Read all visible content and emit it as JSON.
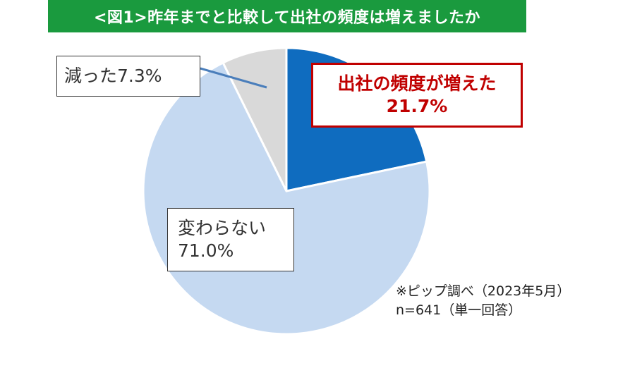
{
  "title": "<図1>昨年までと比較して出社の頻度は増えましたか",
  "chart_data": {
    "type": "pie",
    "slices": [
      {
        "label": "出社の頻度が増えた",
        "value": 21.7,
        "value_label": "21.7%",
        "color": "#0f6cbf"
      },
      {
        "label": "変わらない",
        "value": 71.0,
        "value_label": "71.0%",
        "color": "#c5d9f1"
      },
      {
        "label": "減った",
        "value": 7.3,
        "value_label": "7.3%",
        "color": "#d9d9d9"
      }
    ]
  },
  "labels": {
    "decreased": "減った7.3%",
    "unchanged_name": "変わらない",
    "unchanged_value": "71.0%",
    "increased_name": "出社の頻度が増えた",
    "increased_value": "21.7%"
  },
  "source": {
    "line1": "※ピップ調べ（2023年5月）",
    "line2": "n=641（単一回答）"
  }
}
